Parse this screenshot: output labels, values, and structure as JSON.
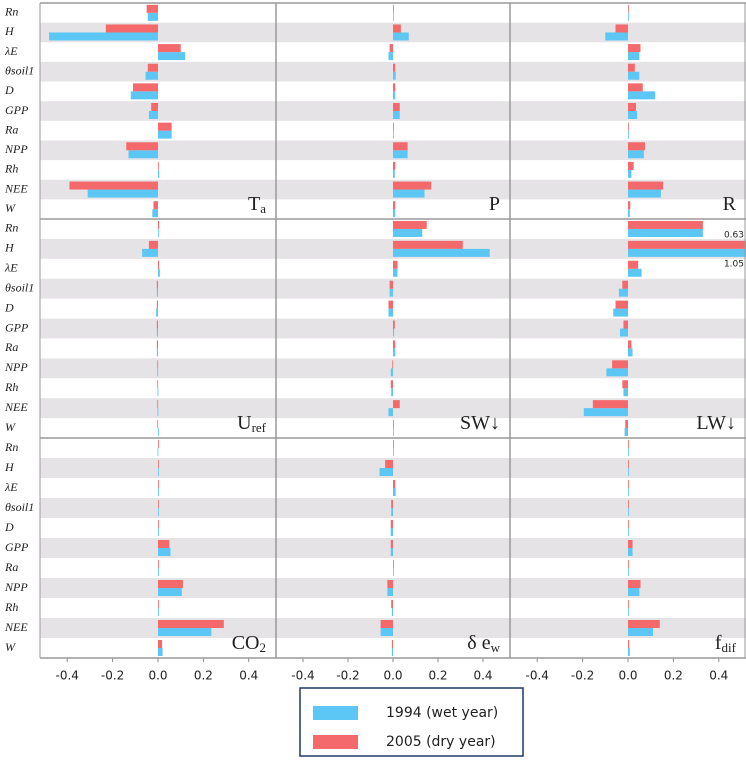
{
  "chart_data": [
    {
      "type": "bar",
      "title": "T",
      "title_sub": "a",
      "categories": [
        "Rn",
        "H",
        "λE",
        "θsoil1",
        "D",
        "GPP",
        "Ra",
        "NPP",
        "Rh",
        "NEE",
        "W"
      ],
      "series": [
        {
          "name": "1994 (wet year)",
          "color": "#5cc6f5",
          "values": [
            -0.045,
            -0.48,
            0.12,
            -0.055,
            -0.12,
            -0.04,
            0.06,
            -0.13,
            0.005,
            -0.31,
            -0.025
          ]
        },
        {
          "name": "2005 (dry year)",
          "color": "#f4696b",
          "values": [
            -0.05,
            -0.23,
            0.1,
            -0.045,
            -0.11,
            -0.03,
            0.06,
            -0.14,
            0.0,
            -0.39,
            -0.02
          ]
        }
      ],
      "xlim": [
        -0.52,
        0.52
      ]
    },
    {
      "type": "bar",
      "title": "P",
      "series": [
        {
          "color": "#5cc6f5",
          "values": [
            0.002,
            0.07,
            -0.02,
            0.012,
            0.01,
            0.03,
            0.002,
            0.065,
            0.008,
            0.14,
            0.01
          ]
        },
        {
          "color": "#f4696b",
          "values": [
            0.002,
            0.035,
            -0.015,
            0.01,
            0.01,
            0.03,
            0.002,
            0.065,
            0.01,
            0.17,
            0.01
          ]
        }
      ],
      "xlim": [
        -0.52,
        0.52
      ]
    },
    {
      "type": "bar",
      "title": "R",
      "series": [
        {
          "color": "#5cc6f5",
          "values": [
            0.002,
            -0.1,
            0.05,
            0.05,
            0.12,
            0.04,
            0.002,
            0.07,
            0.015,
            0.145,
            0.008
          ]
        },
        {
          "color": "#f4696b",
          "values": [
            0.002,
            -0.055,
            0.055,
            0.03,
            0.065,
            0.035,
            0.002,
            0.075,
            0.025,
            0.155,
            0.01
          ]
        }
      ],
      "xlim": [
        -0.52,
        0.52
      ]
    },
    {
      "type": "bar",
      "title": "U",
      "title_sub": "ref",
      "categories": [
        "Rn",
        "H",
        "λE",
        "θsoil1",
        "D",
        "GPP",
        "Ra",
        "NPP",
        "Rh",
        "NEE",
        "W"
      ],
      "series": [
        {
          "color": "#5cc6f5",
          "values": [
            0.003,
            -0.07,
            0.008,
            -0.005,
            -0.008,
            -0.005,
            -0.005,
            -0.003,
            -0.002,
            -0.002,
            0.0
          ]
        },
        {
          "color": "#f4696b",
          "values": [
            0.005,
            -0.04,
            0.005,
            -0.005,
            -0.005,
            -0.005,
            -0.005,
            -0.003,
            -0.003,
            -0.003,
            -0.003
          ]
        }
      ],
      "xlim": [
        -0.52,
        0.52
      ]
    },
    {
      "type": "bar",
      "title": "SW↓",
      "series": [
        {
          "color": "#5cc6f5",
          "values": [
            0.13,
            0.43,
            0.02,
            -0.015,
            -0.02,
            0.005,
            0.01,
            -0.01,
            -0.008,
            -0.02,
            0.0
          ]
        },
        {
          "color": "#f4696b",
          "values": [
            0.15,
            0.31,
            0.02,
            -0.015,
            -0.02,
            0.008,
            0.01,
            -0.003,
            -0.01,
            0.03,
            0.0
          ]
        }
      ],
      "xlim": [
        -0.52,
        0.52
      ]
    },
    {
      "type": "bar",
      "title": "LW↓",
      "series": [
        {
          "color": "#5cc6f5",
          "values": [
            0.33,
            1.05,
            0.06,
            -0.04,
            -0.065,
            -0.035,
            0.02,
            -0.095,
            -0.02,
            -0.195,
            -0.015
          ]
        },
        {
          "color": "#f4696b",
          "values": [
            0.33,
            0.63,
            0.045,
            -0.025,
            -0.055,
            -0.02,
            0.015,
            -0.07,
            -0.025,
            -0.155,
            -0.012
          ]
        }
      ],
      "xlim": [
        -0.52,
        0.52
      ]
    },
    {
      "type": "bar",
      "title": "CO",
      "title_sub": "2",
      "categories": [
        "Rn",
        "H",
        "λE",
        "θsoil1",
        "D",
        "GPP",
        "Ra",
        "NPP",
        "Rh",
        "NEE",
        "W"
      ],
      "series": [
        {
          "color": "#5cc6f5",
          "values": [
            -0.002,
            0.0,
            0.0,
            0.0,
            0.0,
            0.055,
            0.0,
            0.105,
            0.0,
            0.235,
            0.02
          ]
        },
        {
          "color": "#f4696b",
          "values": [
            0.0,
            0.0,
            0.0,
            0.0,
            0.0,
            0.05,
            0.0,
            0.11,
            0.0,
            0.29,
            0.018
          ]
        }
      ],
      "xlim": [
        -0.52,
        0.52
      ],
      "xticks": [
        -0.4,
        -0.2,
        {
          "value": 0,
          "label": "0.0"
        },
        0.2,
        0.4
      ]
    },
    {
      "type": "bar",
      "title": "δ e",
      "title_sub": "w",
      "series": [
        {
          "color": "#5cc6f5",
          "values": [
            0.0,
            -0.06,
            0.012,
            -0.008,
            -0.01,
            -0.01,
            0.0,
            -0.025,
            -0.005,
            -0.055,
            -0.005
          ]
        },
        {
          "color": "#f4696b",
          "values": [
            0.0,
            -0.035,
            0.01,
            -0.008,
            -0.01,
            -0.01,
            0.0,
            -0.025,
            -0.008,
            -0.055,
            -0.005
          ]
        }
      ],
      "xlim": [
        -0.52,
        0.52
      ],
      "xticks": [
        -0.4,
        -0.2,
        {
          "value": 0,
          "label": "0.0"
        },
        0.2,
        0.4
      ]
    },
    {
      "type": "bar",
      "title": "f",
      "title_sub": "dif",
      "series": [
        {
          "color": "#5cc6f5",
          "values": [
            0.0,
            0.0,
            0.0,
            0.0,
            0.0,
            0.02,
            0.0,
            0.05,
            0.0,
            0.11,
            0.008
          ]
        },
        {
          "color": "#f4696b",
          "values": [
            0.0,
            0.0,
            0.0,
            0.0,
            0.0,
            0.02,
            0.0,
            0.055,
            0.0,
            0.14,
            0.005
          ]
        }
      ],
      "xlim": [
        -0.52,
        0.52
      ],
      "xticks": [
        -0.4,
        -0.2,
        {
          "value": 0,
          "label": "0.0"
        },
        0.2,
        0.4
      ]
    }
  ]
}
